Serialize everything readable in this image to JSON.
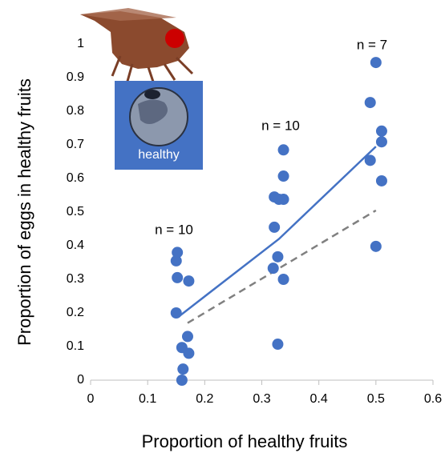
{
  "chart_data": {
    "type": "scatter",
    "xlabel": "Proportion of healthy fruits",
    "ylabel": "Proportion of eggs in healthy fruits",
    "inset_label": "healthy",
    "annotations": [
      "n = 10",
      "n = 10",
      "n = 7"
    ],
    "points": {
      "color": "#4472c4",
      "x": [
        0.152,
        0.15,
        0.152,
        0.172,
        0.15,
        0.17,
        0.16,
        0.172,
        0.162,
        0.16,
        0.322,
        0.33,
        0.338,
        0.338,
        0.338,
        0.322,
        0.328,
        0.32,
        0.338,
        0.328,
        0.5,
        0.49,
        0.51,
        0.51,
        0.49,
        0.51,
        0.5
      ],
      "y": [
        0.38,
        0.355,
        0.305,
        0.295,
        0.2,
        0.13,
        0.097,
        0.08,
        0.033,
        0.0,
        0.545,
        0.538,
        0.538,
        0.607,
        0.685,
        0.455,
        0.367,
        0.333,
        0.3,
        0.107,
        0.945,
        0.826,
        0.741,
        0.709,
        0.654,
        0.593,
        0.398
      ]
    },
    "fits": [
      {
        "color": "#4472c4",
        "dashed": false,
        "x": [
          0.155,
          0.33,
          0.5
        ],
        "y": [
          0.19,
          0.42,
          0.695
        ]
      },
      {
        "color": "#808080",
        "dashed": true,
        "x": [
          0.17,
          0.5
        ],
        "y": [
          0.17,
          0.505
        ]
      }
    ],
    "xlim": [
      0,
      0.6
    ],
    "xticks": [
      0,
      0.1,
      0.2,
      0.3,
      0.4,
      0.5,
      0.6
    ],
    "ylim": [
      0,
      1
    ],
    "yticks": [
      0,
      0.1,
      0.2,
      0.3,
      0.4,
      0.5,
      0.6,
      0.7,
      0.8,
      0.9,
      1
    ]
  }
}
